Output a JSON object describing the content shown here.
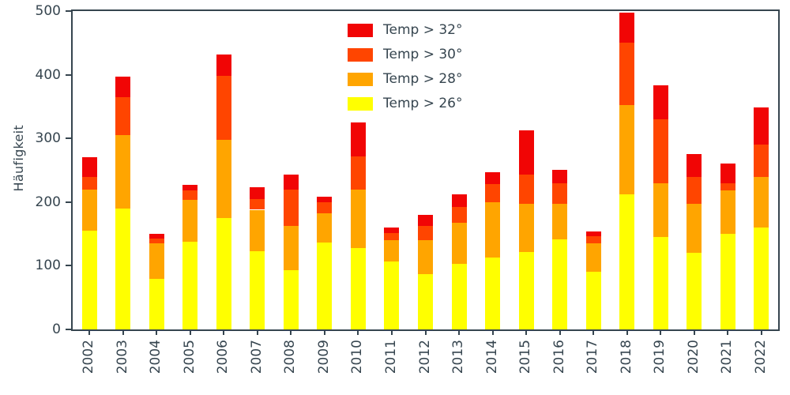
{
  "chart_data": {
    "type": "bar",
    "stacked": true,
    "title": "",
    "xlabel": "",
    "ylabel": "Häufigkeit",
    "ylim": [
      0,
      500
    ],
    "yticks": [
      0,
      100,
      200,
      300,
      400,
      500
    ],
    "grid": false,
    "legend_position": "upper center",
    "categories": [
      "2002",
      "2003",
      "2004",
      "2005",
      "2006",
      "2007",
      "2008",
      "2009",
      "2010",
      "2011",
      "2012",
      "2013",
      "2014",
      "2015",
      "2016",
      "2017",
      "2018",
      "2019",
      "2020",
      "2021",
      "2022"
    ],
    "series": [
      {
        "name": "Temp > 32°",
        "color": "#f10505",
        "values": [
          30,
          32,
          7,
          9,
          34,
          18,
          23,
          8,
          53,
          8,
          17,
          20,
          19,
          70,
          21,
          7,
          47,
          53,
          35,
          31,
          59
        ]
      },
      {
        "name": "Temp > 30°",
        "color": "#ff4500",
        "values": [
          20,
          60,
          8,
          15,
          100,
          17,
          57,
          17,
          52,
          12,
          23,
          24,
          28,
          46,
          33,
          12,
          98,
          100,
          43,
          12,
          50
        ]
      },
      {
        "name": "Temp > 28°",
        "color": "#ffa500",
        "values": [
          65,
          115,
          55,
          65,
          123,
          65,
          70,
          46,
          92,
          33,
          53,
          65,
          87,
          75,
          55,
          44,
          140,
          85,
          77,
          68,
          80
        ]
      },
      {
        "name": "Temp > 26°",
        "color": "#ffff00",
        "values": [
          155,
          190,
          80,
          138,
          175,
          123,
          93,
          137,
          128,
          107,
          87,
          103,
          113,
          122,
          142,
          91,
          212,
          145,
          120,
          150,
          160
        ]
      }
    ],
    "totals": [
      270,
      397,
      150,
      227,
      432,
      223,
      243,
      208,
      325,
      160,
      180,
      212,
      247,
      313,
      251,
      154,
      497,
      383,
      275,
      261,
      349
    ]
  }
}
